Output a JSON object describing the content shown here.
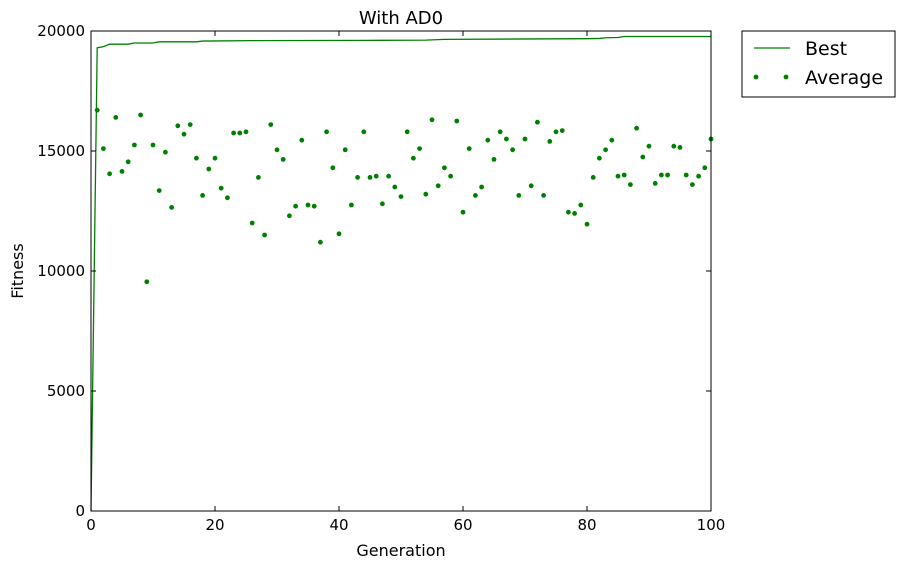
{
  "chart_data": {
    "type": "line",
    "title": "With AD0",
    "xlabel": "Generation",
    "ylabel": "Fitness",
    "xlim": [
      0,
      100
    ],
    "ylim": [
      0,
      20000
    ],
    "xticks": [
      0,
      20,
      40,
      60,
      80,
      100
    ],
    "xtick_labels": [
      "0",
      "20",
      "40",
      "60",
      "80",
      "100"
    ],
    "yticks": [
      0,
      5000,
      10000,
      15000,
      20000
    ],
    "ytick_labels": [
      "0",
      "5000",
      "10000",
      "15000",
      "20000"
    ],
    "grid": false,
    "legend_position": "outside-top-right",
    "series": [
      {
        "name": "Best",
        "style": "line",
        "color": "#008000",
        "points": [
          [
            0,
            0
          ],
          [
            1,
            19300
          ],
          [
            2,
            19350
          ],
          [
            3,
            19450
          ],
          [
            5,
            19450
          ],
          [
            6,
            19450
          ],
          [
            7,
            19500
          ],
          [
            10,
            19500
          ],
          [
            11,
            19550
          ],
          [
            17,
            19550
          ],
          [
            18,
            19580
          ],
          [
            26,
            19600
          ],
          [
            44,
            19610
          ],
          [
            54,
            19620
          ],
          [
            57,
            19650
          ],
          [
            71,
            19670
          ],
          [
            80,
            19680
          ],
          [
            82,
            19690
          ],
          [
            83,
            19720
          ],
          [
            85,
            19730
          ],
          [
            86,
            19770
          ],
          [
            100,
            19770
          ]
        ]
      },
      {
        "name": "Average",
        "style": "dots",
        "color": "#008000",
        "points": [
          [
            1,
            16700
          ],
          [
            2,
            15100
          ],
          [
            3,
            14050
          ],
          [
            4,
            16400
          ],
          [
            5,
            14150
          ],
          [
            6,
            14550
          ],
          [
            7,
            15250
          ],
          [
            8,
            16500
          ],
          [
            9,
            9550
          ],
          [
            10,
            15250
          ],
          [
            11,
            13350
          ],
          [
            12,
            14950
          ],
          [
            13,
            12650
          ],
          [
            14,
            16050
          ],
          [
            15,
            15700
          ],
          [
            16,
            16100
          ],
          [
            17,
            14700
          ],
          [
            18,
            13150
          ],
          [
            19,
            14250
          ],
          [
            20,
            14700
          ],
          [
            21,
            13450
          ],
          [
            22,
            13050
          ],
          [
            23,
            15750
          ],
          [
            24,
            15750
          ],
          [
            25,
            15800
          ],
          [
            26,
            12000
          ],
          [
            27,
            13900
          ],
          [
            28,
            11500
          ],
          [
            29,
            16100
          ],
          [
            30,
            15050
          ],
          [
            31,
            14650
          ],
          [
            32,
            12300
          ],
          [
            33,
            12700
          ],
          [
            34,
            15450
          ],
          [
            35,
            12750
          ],
          [
            36,
            12700
          ],
          [
            37,
            11200
          ],
          [
            38,
            15800
          ],
          [
            39,
            14300
          ],
          [
            40,
            11550
          ],
          [
            41,
            15050
          ],
          [
            42,
            12750
          ],
          [
            43,
            13900
          ],
          [
            44,
            15800
          ],
          [
            45,
            13900
          ],
          [
            46,
            13950
          ],
          [
            47,
            12800
          ],
          [
            48,
            13950
          ],
          [
            49,
            13500
          ],
          [
            50,
            13100
          ],
          [
            51,
            15800
          ],
          [
            52,
            14700
          ],
          [
            53,
            15100
          ],
          [
            54,
            13200
          ],
          [
            55,
            16300
          ],
          [
            56,
            13550
          ],
          [
            57,
            14300
          ],
          [
            58,
            13950
          ],
          [
            59,
            16250
          ],
          [
            60,
            12450
          ],
          [
            61,
            15100
          ],
          [
            62,
            13150
          ],
          [
            63,
            13500
          ],
          [
            64,
            15450
          ],
          [
            65,
            14650
          ],
          [
            66,
            15800
          ],
          [
            67,
            15500
          ],
          [
            68,
            15050
          ],
          [
            69,
            13150
          ],
          [
            70,
            15500
          ],
          [
            71,
            13550
          ],
          [
            72,
            16200
          ],
          [
            73,
            13150
          ],
          [
            74,
            15400
          ],
          [
            75,
            15800
          ],
          [
            76,
            15850
          ],
          [
            77,
            12450
          ],
          [
            78,
            12400
          ],
          [
            79,
            12750
          ],
          [
            80,
            11950
          ],
          [
            81,
            13900
          ],
          [
            82,
            14700
          ],
          [
            83,
            15050
          ],
          [
            84,
            15450
          ],
          [
            85,
            13950
          ],
          [
            86,
            14000
          ],
          [
            87,
            13600
          ],
          [
            88,
            15950
          ],
          [
            89,
            14750
          ],
          [
            90,
            15200
          ],
          [
            91,
            13650
          ],
          [
            92,
            14000
          ],
          [
            93,
            14000
          ],
          [
            94,
            15200
          ],
          [
            95,
            15150
          ],
          [
            96,
            14000
          ],
          [
            97,
            13600
          ],
          [
            98,
            13950
          ],
          [
            99,
            14300
          ],
          [
            100,
            15500
          ]
        ]
      }
    ]
  }
}
